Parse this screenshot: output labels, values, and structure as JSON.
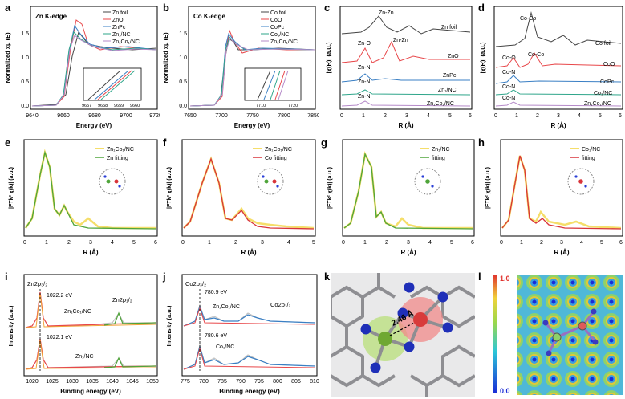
{
  "panel_labels": [
    "a",
    "b",
    "c",
    "d",
    "e",
    "f",
    "g",
    "h",
    "i",
    "j",
    "k",
    "l"
  ],
  "colors": {
    "foil": "#444444",
    "oxide": "#e8474a",
    "pc": "#3a7fc4",
    "snc": "#2ea58a",
    "dual": "#b58ac9",
    "exp": "#f5de6a",
    "zn_fit": "#4fa53a",
    "co_fit": "#d8343a",
    "xps_fit": "#e8474a",
    "xps_green": "#4fa53a",
    "xps_blue": "#3a7fc4"
  },
  "a": {
    "title": "Zn K-edge",
    "ylabel": "Normalized xμ (E)",
    "xlabel": "Energy (eV)",
    "xticks": [
      "9640",
      "9660",
      "9680",
      "9700",
      "9720"
    ],
    "yticks": [
      "0.0",
      "0.5",
      "1.0",
      "1.5"
    ],
    "legend": [
      "Zn foil",
      "ZnO",
      "ZnPc",
      "Zn₁/NC",
      "Zn₁Co₁/NC"
    ],
    "inset_ticks": [
      "9657",
      "9658",
      "9659",
      "9660"
    ]
  },
  "b": {
    "title": "Co K-edge",
    "ylabel": "Normalized xμ (E)",
    "xlabel": "Energy (eV)",
    "xticks": [
      "7650",
      "7700",
      "7750",
      "7800",
      "7850"
    ],
    "yticks": [
      "0.0",
      "0.5",
      "1.0",
      "1.5"
    ],
    "legend": [
      "Co foil",
      "CoO",
      "CoPc",
      "Co₁/NC",
      "Zn₁Co₁/NC"
    ],
    "inset_ticks": [
      "7710",
      "7720"
    ]
  },
  "c": {
    "ylabel": "|χ(R)| (a.u.)",
    "xlabel": "R (Å)",
    "xticks": [
      "0",
      "1",
      "2",
      "3",
      "4",
      "5",
      "6"
    ],
    "annotations": [
      "Zn-Zn",
      "Zn foil",
      "Zn-O",
      "Zn-Zn",
      "ZnO",
      "Zn-N",
      "ZnPc",
      "Zn-N",
      "Zn₁/NC",
      "Zn-N",
      "Zn₁Co₁/NC"
    ]
  },
  "d": {
    "ylabel": "|χ(R)| (a.u.)",
    "xlabel": "R (Å)",
    "xticks": [
      "0",
      "1",
      "2",
      "3",
      "4",
      "5",
      "6"
    ],
    "annotations": [
      "Co-Co",
      "Co foil",
      "Co-O",
      "Co-Co",
      "CoO",
      "Co-N",
      "CoPc",
      "Co-N",
      "Co₁/NC",
      "Co-N",
      "Zn₁Co₁/NC"
    ]
  },
  "e": {
    "ylabel": "|FTk² χ(k)| (a.u.)",
    "xlabel": "R (Å)",
    "xticks": [
      "0",
      "1",
      "2",
      "3",
      "4",
      "5",
      "6"
    ],
    "legend": [
      "Zn₁Co₁/NC",
      "Zn  fitting"
    ]
  },
  "f": {
    "ylabel": "|FTk² χ(k)| (a.u.)",
    "xlabel": "R (Å)",
    "xticks": [
      "0",
      "1",
      "2",
      "3",
      "4",
      "5"
    ],
    "legend": [
      "Zn₁Co₁/NC",
      "Co  fitting"
    ]
  },
  "g": {
    "ylabel": "|FTk² χ(k)| (a.u.)",
    "xlabel": "R (Å)",
    "xticks": [
      "0",
      "1",
      "2",
      "3",
      "4",
      "5",
      "6"
    ],
    "legend": [
      "Zn₁/NC",
      "fitting"
    ]
  },
  "h": {
    "ylabel": "|FTk² χ(k)| (a.u.)",
    "xlabel": "R (Å)",
    "xticks": [
      "0",
      "1",
      "2",
      "3",
      "4",
      "5",
      "6"
    ],
    "legend": [
      "Co₁/NC",
      "fitting"
    ]
  },
  "i": {
    "ylabel": "Intensity (a.u.)",
    "xlabel": "Binding energy (eV)",
    "xticks": [
      "1020",
      "1025",
      "1030",
      "1035",
      "1040",
      "1045",
      "1050"
    ],
    "annotations": [
      "Zn2p₃/₂",
      "1022.2 eV",
      "Zn2p₁/₂",
      "Zn₁Co₁/NC",
      "1022.1 eV",
      "Zn₁/NC"
    ]
  },
  "j": {
    "ylabel": "Intensity (a.u.)",
    "xlabel": "Binding energy (eV)",
    "xticks": [
      "775",
      "780",
      "785",
      "790",
      "795",
      "800",
      "805",
      "810"
    ],
    "annotations": [
      "Co2p₃/₂",
      "780.9 eV",
      "Zn₁Co₁/NC",
      "Co2p₁/₂",
      "780.6 eV",
      "Co₁/NC"
    ]
  },
  "k": {
    "distance": "2.46 Å"
  },
  "l": {
    "scale_max": "1.0",
    "scale_min": "0.0"
  }
}
